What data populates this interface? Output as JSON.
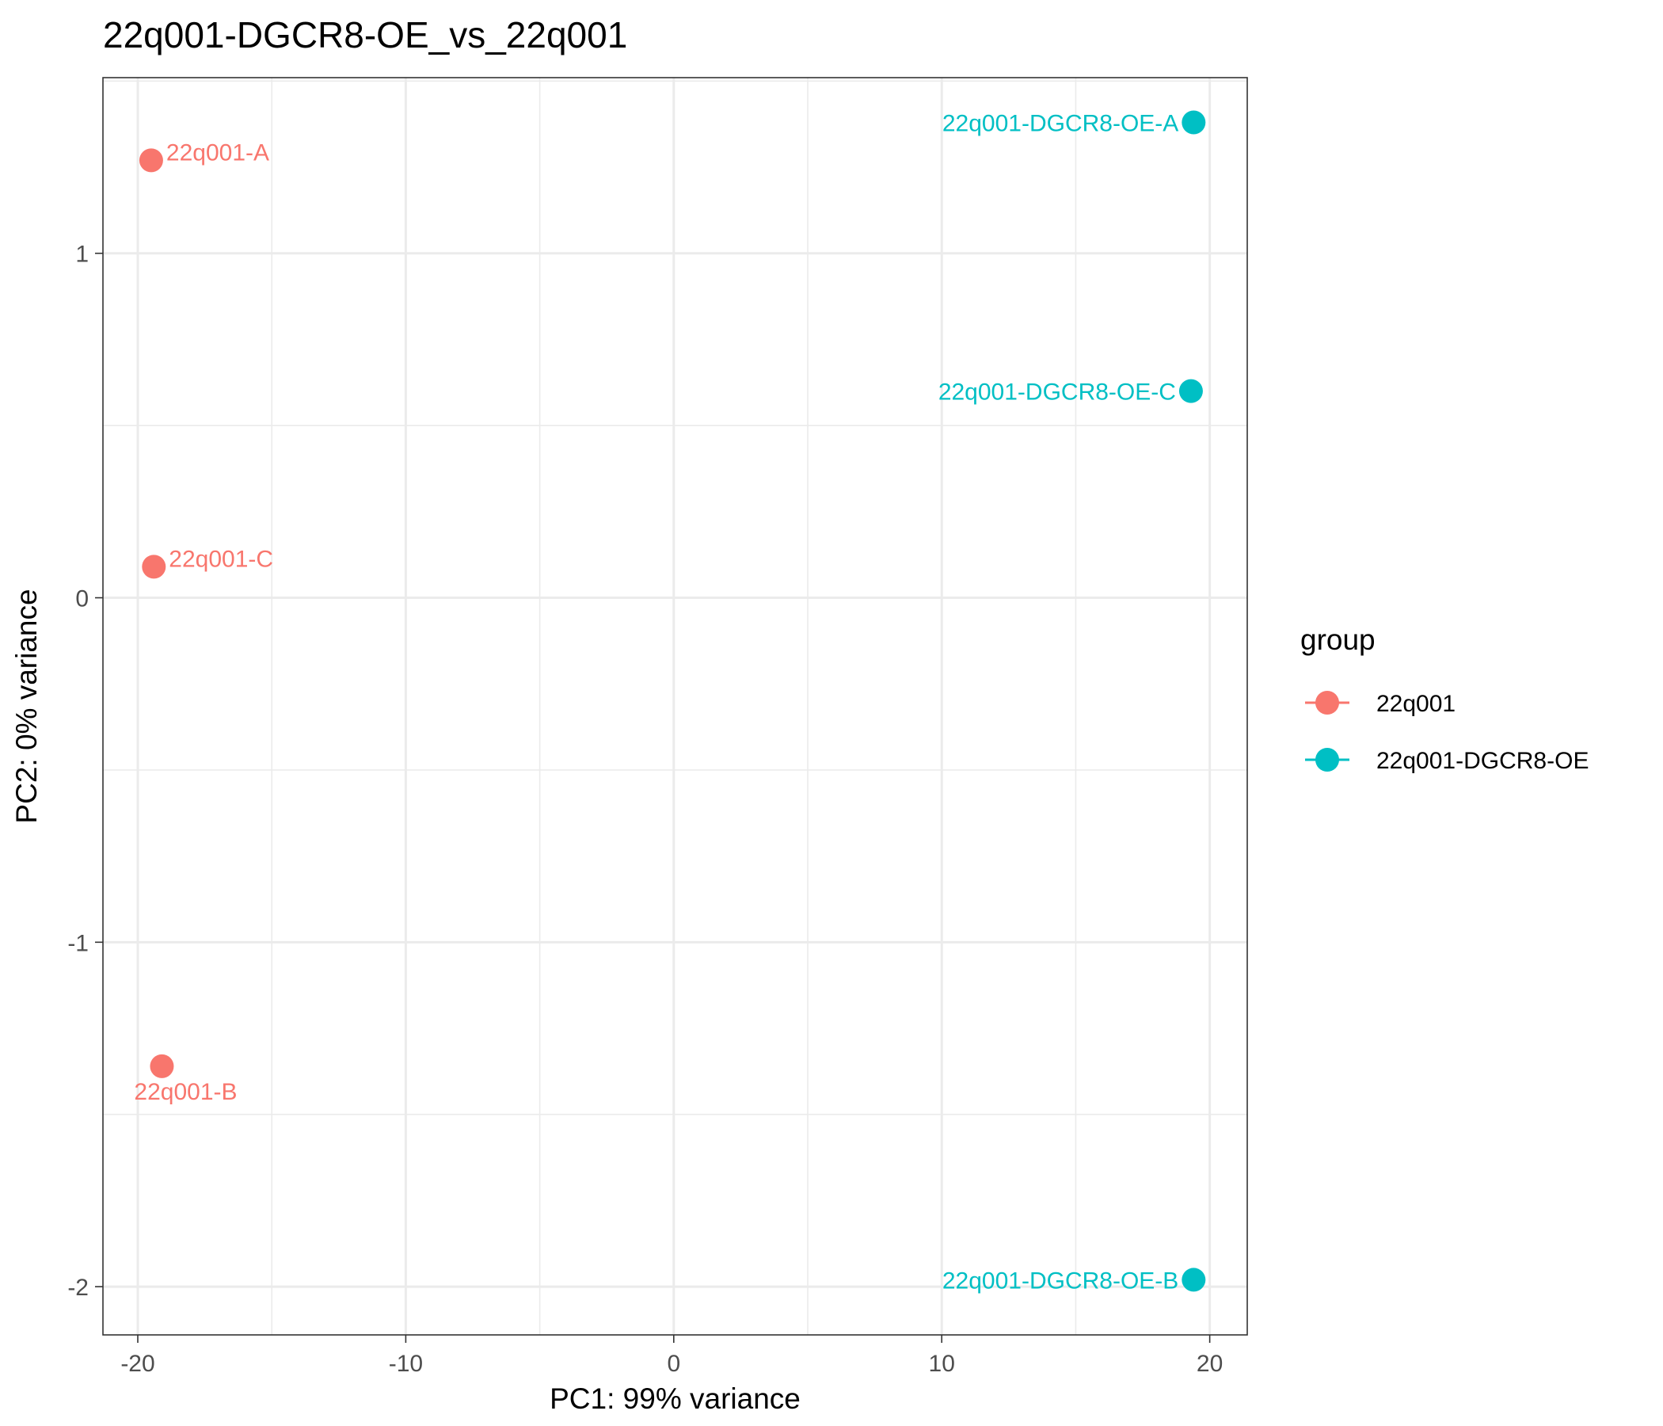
{
  "chart_data": {
    "type": "scatter",
    "title": "22q001-DGCR8-OE_vs_22q001",
    "xlabel": "PC1: 99% variance",
    "ylabel": "PC2: 0% variance",
    "xlim": [
      -21.3,
      21.4
    ],
    "ylim": [
      -2.14,
      1.51
    ],
    "x_ticks": [
      -20,
      -10,
      0,
      10,
      20
    ],
    "x_tick_labels": [
      "-20",
      "-10",
      "0",
      "10",
      "20"
    ],
    "y_ticks": [
      -2,
      -1,
      0,
      1
    ],
    "y_tick_labels": [
      "-2",
      "-1",
      "0",
      "1"
    ],
    "x_minor": [
      -15,
      -5,
      5,
      15
    ],
    "y_minor": [
      -1.5,
      -0.5,
      0.5,
      1.5
    ],
    "grid": true,
    "legend": {
      "title": "group",
      "placement": "right"
    },
    "series": [
      {
        "name": "22q001",
        "color": "#F8766D",
        "points": [
          {
            "x": -19.5,
            "y": 1.27,
            "label": "22q001-A",
            "anchor": "start"
          },
          {
            "x": -19.4,
            "y": 0.09,
            "label": "22q001-C",
            "anchor": "start"
          },
          {
            "x": -19.1,
            "y": -1.36,
            "label": "22q001-B",
            "anchor": "middle-below"
          }
        ]
      },
      {
        "name": "22q001-DGCR8-OE",
        "color": "#00BFC4",
        "points": [
          {
            "x": 19.4,
            "y": 1.38,
            "label": "22q001-DGCR8-OE-A",
            "anchor": "end"
          },
          {
            "x": 19.3,
            "y": 0.6,
            "label": "22q001-DGCR8-OE-C",
            "anchor": "end"
          },
          {
            "x": 19.4,
            "y": -1.98,
            "label": "22q001-DGCR8-OE-B",
            "anchor": "end"
          }
        ]
      }
    ]
  }
}
